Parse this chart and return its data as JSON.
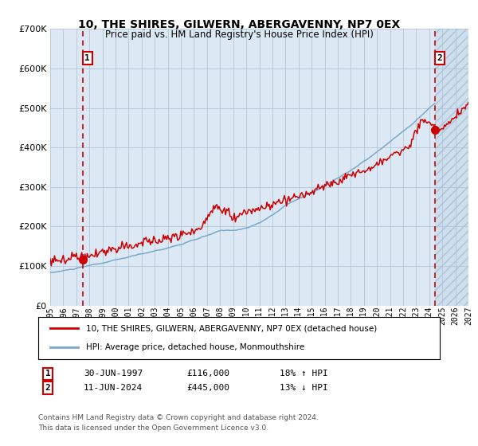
{
  "title": "10, THE SHIRES, GILWERN, ABERGAVENNY, NP7 0EX",
  "subtitle": "Price paid vs. HM Land Registry's House Price Index (HPI)",
  "legend_line1": "10, THE SHIRES, GILWERN, ABERGAVENNY, NP7 0EX (detached house)",
  "legend_line2": "HPI: Average price, detached house, Monmouthshire",
  "annotation1_label": "1",
  "annotation1_date": "30-JUN-1997",
  "annotation1_price": "£116,000",
  "annotation1_hpi": "18% ↑ HPI",
  "annotation2_label": "2",
  "annotation2_date": "11-JUN-2024",
  "annotation2_price": "£445,000",
  "annotation2_hpi": "13% ↓ HPI",
  "footnote1": "Contains HM Land Registry data © Crown copyright and database right 2024.",
  "footnote2": "This data is licensed under the Open Government Licence v3.0.",
  "sale1_date_num": 1997.5,
  "sale1_price": 116000,
  "sale2_date_num": 2024.44,
  "sale2_price": 445000,
  "xmin": 1995,
  "xmax": 2027,
  "ymin": 0,
  "ymax": 700000,
  "yticks": [
    0,
    100000,
    200000,
    300000,
    400000,
    500000,
    600000,
    700000
  ],
  "background_color": "#dce9f5",
  "grid_color": "#b0c4d8",
  "red_line_color": "#cc0000",
  "blue_line_color": "#7aa8cc",
  "vline_color": "#cc0000",
  "future_shade_start": 2024.44,
  "xticks": [
    1995,
    1996,
    1997,
    1998,
    1999,
    2000,
    2001,
    2002,
    2003,
    2004,
    2005,
    2006,
    2007,
    2008,
    2009,
    2010,
    2011,
    2012,
    2013,
    2014,
    2015,
    2016,
    2017,
    2018,
    2019,
    2020,
    2021,
    2022,
    2023,
    2024,
    2025,
    2026,
    2027
  ]
}
